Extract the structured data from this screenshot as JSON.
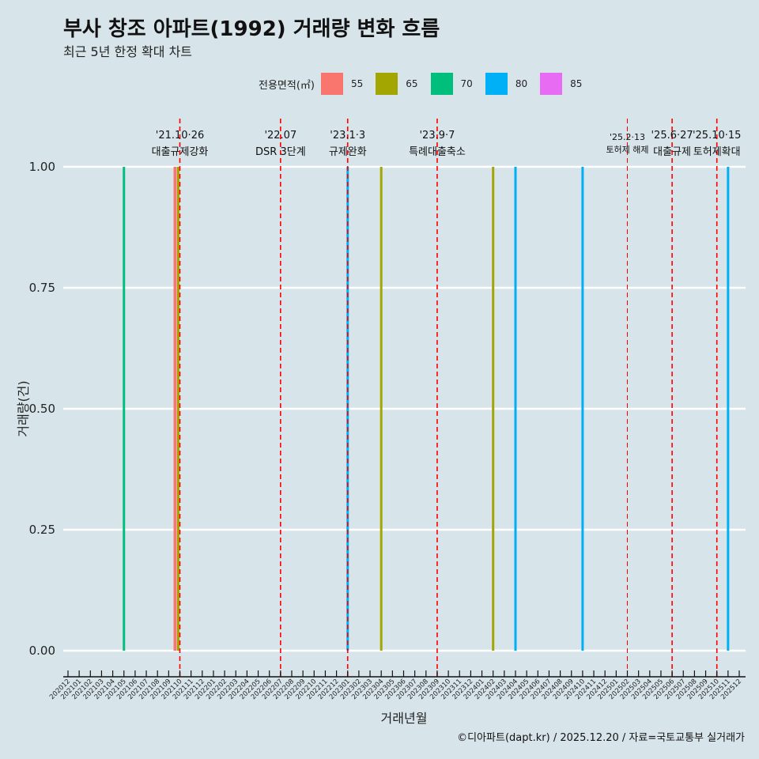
{
  "title": "부사 창조 아파트(1992) 거래량 변화 흐름",
  "subtitle": "최근 5년 한정 확대 차트",
  "caption": "©디아파트(dapt.kr) / 2025.12.20 / 자료=국토교통부 실거래가",
  "chart_data": {
    "type": "bar",
    "xlabel": "거래년월",
    "ylabel": "거래량(건)",
    "ylim": [
      0,
      1
    ],
    "yticks": [
      "0.00",
      "0.25",
      "0.50",
      "0.75",
      "1.00"
    ],
    "grid": true,
    "legend": {
      "title": "전용면적(㎡)",
      "position": "top",
      "entries": [
        {
          "label": "55",
          "color": "#F8766D"
        },
        {
          "label": "65",
          "color": "#A3A500"
        },
        {
          "label": "70",
          "color": "#00BF7D"
        },
        {
          "label": "80",
          "color": "#00B0F6"
        },
        {
          "label": "85",
          "color": "#E76BF3"
        }
      ]
    },
    "months": [
      "202012",
      "202101",
      "202102",
      "202103",
      "202104",
      "202105",
      "202106",
      "202107",
      "202108",
      "202109",
      "202110",
      "202111",
      "202112",
      "202201",
      "202202",
      "202203",
      "202204",
      "202205",
      "202206",
      "202207",
      "202208",
      "202209",
      "202210",
      "202211",
      "202212",
      "202301",
      "202302",
      "202303",
      "202304",
      "202305",
      "202306",
      "202307",
      "202308",
      "202309",
      "202310",
      "202311",
      "202312",
      "202401",
      "202402",
      "202403",
      "202404",
      "202405",
      "202406",
      "202407",
      "202408",
      "202409",
      "202410",
      "202411",
      "202412",
      "202501",
      "202502",
      "202503",
      "202504",
      "202505",
      "202506",
      "202507",
      "202508",
      "202509",
      "202510",
      "202511",
      "202512"
    ],
    "bars": [
      {
        "month": "202105",
        "area": "70",
        "value": 1
      },
      {
        "month": "202110",
        "area": "55",
        "value": 1
      },
      {
        "month": "202110",
        "area": "65",
        "value": 1
      },
      {
        "month": "202301",
        "area": "80",
        "value": 1
      },
      {
        "month": "202304",
        "area": "65",
        "value": 1
      },
      {
        "month": "202402",
        "area": "65",
        "value": 1
      },
      {
        "month": "202404",
        "area": "80",
        "value": 1
      },
      {
        "month": "202410",
        "area": "80",
        "value": 1
      },
      {
        "month": "202511",
        "area": "80",
        "value": 1
      }
    ],
    "events": [
      {
        "month": "202110",
        "date": "'21.10·26",
        "label": "대출규제강화"
      },
      {
        "month": "202207",
        "date": "'22.07",
        "label": "DSR 3단계"
      },
      {
        "month": "202301",
        "date": "'23.1·3",
        "label": "규제완화"
      },
      {
        "month": "202309",
        "date": "'23.9·7",
        "label": "특례대출축소"
      },
      {
        "month": "202502",
        "date": "'25.2·13",
        "label": "토허제 해제",
        "minor": true
      },
      {
        "month": "202506",
        "date": "'25.6·27",
        "label": "대출규제"
      },
      {
        "month": "202510",
        "date": "'25.10·15",
        "label": "토허제확대"
      }
    ],
    "event_color": "#FF0000"
  }
}
